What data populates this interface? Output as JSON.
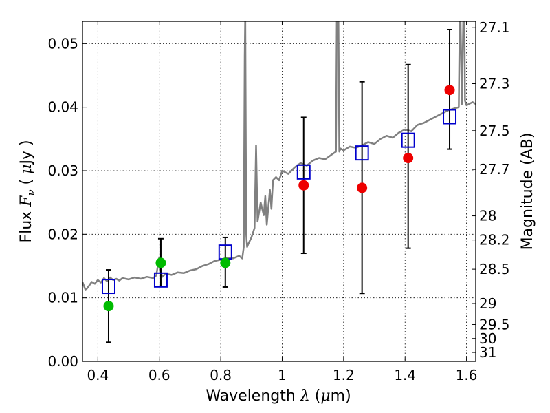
{
  "chart_data": {
    "type": "scatter",
    "title": "",
    "xlabel": "Wavelength  λ (μm)",
    "ylabel": "Flux  F_ν  ( μJy )",
    "ylabel_right": "Magnitude (AB)",
    "xlim": [
      0.35,
      1.63
    ],
    "ylim": [
      0.0,
      0.0535
    ],
    "grid": true,
    "x_ticks": [
      0.4,
      0.6,
      0.8,
      1.0,
      1.2,
      1.4,
      1.6
    ],
    "x_tick_labels": [
      "0.4",
      "0.6",
      "0.8",
      "1",
      "1.2",
      "1.4",
      "1.6"
    ],
    "y_ticks": [
      0.0,
      0.01,
      0.02,
      0.03,
      0.04,
      0.05
    ],
    "y_tick_labels": [
      "0.00",
      "0.01",
      "0.02",
      "0.03",
      "0.04",
      "0.05"
    ],
    "right_axis_ticks": [
      {
        "label": "27.1",
        "flux": 0.0525
      },
      {
        "label": "27.3",
        "flux": 0.0437
      },
      {
        "label": "27.5",
        "flux": 0.0363
      },
      {
        "label": "27.7",
        "flux": 0.0302
      },
      {
        "label": "28",
        "flux": 0.0229
      },
      {
        "label": "28.2",
        "flux": 0.0191
      },
      {
        "label": "28.5",
        "flux": 0.0145
      },
      {
        "label": "29",
        "flux": 0.0091
      },
      {
        "label": "29.5",
        "flux": 0.0058
      },
      {
        "label": "30",
        "flux": 0.0036
      },
      {
        "label": "31",
        "flux": 0.0014
      }
    ],
    "series": [
      {
        "kind": "line",
        "color": "#808080",
        "x": [
          0.35,
          0.36,
          0.37,
          0.38,
          0.39,
          0.4,
          0.41,
          0.42,
          0.43,
          0.44,
          0.45,
          0.46,
          0.47,
          0.48,
          0.5,
          0.52,
          0.54,
          0.56,
          0.58,
          0.59,
          0.6,
          0.605,
          0.61,
          0.62,
          0.64,
          0.66,
          0.68,
          0.7,
          0.72,
          0.74,
          0.76,
          0.78,
          0.8,
          0.82,
          0.84,
          0.86,
          0.87,
          0.875,
          0.878,
          0.88,
          0.883,
          0.886,
          0.89,
          0.9,
          0.91,
          0.915,
          0.92,
          0.93,
          0.94,
          0.945,
          0.95,
          0.96,
          0.965,
          0.97,
          0.98,
          0.99,
          1.0,
          1.02,
          1.04,
          1.06,
          1.08,
          1.1,
          1.12,
          1.14,
          1.16,
          1.175,
          1.178,
          1.18,
          1.183,
          1.186,
          1.19,
          1.2,
          1.22,
          1.24,
          1.26,
          1.28,
          1.3,
          1.32,
          1.34,
          1.36,
          1.38,
          1.4,
          1.42,
          1.44,
          1.46,
          1.48,
          1.5,
          1.52,
          1.54,
          1.56,
          1.575,
          1.578,
          1.58,
          1.585,
          1.59,
          1.593,
          1.595,
          1.6,
          1.62,
          1.63
        ],
        "y": [
          0.0125,
          0.0112,
          0.0118,
          0.0125,
          0.0122,
          0.0128,
          0.0124,
          0.0131,
          0.0126,
          0.0132,
          0.0128,
          0.013,
          0.0127,
          0.0131,
          0.0129,
          0.0132,
          0.013,
          0.0133,
          0.0131,
          0.0135,
          0.0164,
          0.014,
          0.0133,
          0.0138,
          0.0136,
          0.014,
          0.0139,
          0.0143,
          0.0145,
          0.015,
          0.0153,
          0.0158,
          0.016,
          0.0163,
          0.0162,
          0.0166,
          0.0162,
          0.018,
          0.048,
          0.055,
          0.02,
          0.018,
          0.0185,
          0.0195,
          0.021,
          0.034,
          0.022,
          0.025,
          0.023,
          0.026,
          0.0215,
          0.027,
          0.024,
          0.0285,
          0.029,
          0.0285,
          0.03,
          0.0295,
          0.0305,
          0.0312,
          0.0308,
          0.0316,
          0.032,
          0.0318,
          0.0325,
          0.033,
          0.055,
          0.055,
          0.055,
          0.033,
          0.0335,
          0.0332,
          0.0338,
          0.0336,
          0.034,
          0.0345,
          0.0342,
          0.035,
          0.0355,
          0.0352,
          0.036,
          0.0365,
          0.0362,
          0.0372,
          0.0375,
          0.038,
          0.0385,
          0.039,
          0.0395,
          0.0398,
          0.04,
          0.055,
          0.055,
          0.0405,
          0.055,
          0.055,
          0.041,
          0.0403,
          0.0408,
          0.0405
        ]
      },
      {
        "kind": "squares",
        "color": "#0000cc",
        "x": [
          0.435,
          0.605,
          0.815,
          1.07,
          1.26,
          1.41,
          1.545
        ],
        "y": [
          0.0118,
          0.0128,
          0.0172,
          0.0298,
          0.0328,
          0.0348,
          0.0385
        ]
      },
      {
        "kind": "points",
        "color": "#00bb00",
        "x": [
          0.435,
          0.605,
          0.815
        ],
        "y": [
          0.0087,
          0.0155,
          0.0155
        ]
      },
      {
        "kind": "points",
        "color": "#ee0000",
        "x": [
          1.07,
          1.26,
          1.41,
          1.545
        ],
        "y": [
          0.0277,
          0.0273,
          0.032,
          0.0427
        ]
      },
      {
        "kind": "errorbars",
        "color": "#000000",
        "x": [
          0.435,
          0.605,
          0.815,
          1.07,
          1.26,
          1.41,
          1.545
        ],
        "ylo": [
          0.003,
          0.0118,
          0.0117,
          0.017,
          0.0107,
          0.0178,
          0.0334
        ],
        "yhi": [
          0.0144,
          0.0193,
          0.0195,
          0.0384,
          0.044,
          0.0467,
          0.0522
        ]
      }
    ]
  }
}
